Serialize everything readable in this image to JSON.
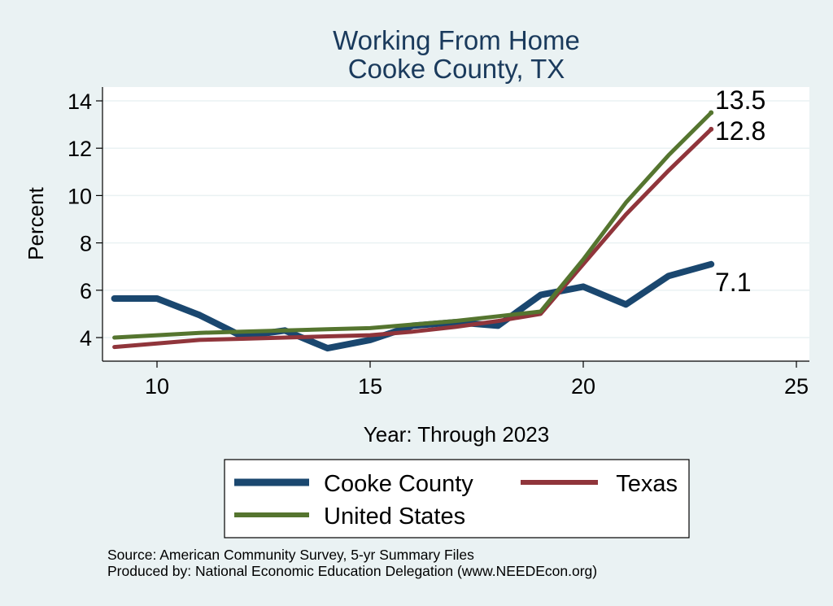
{
  "chart_data": {
    "type": "line",
    "title": [
      "Working From Home",
      "Cooke County, TX"
    ],
    "xlabel": "Year: Through 2023",
    "ylabel": "Percent",
    "xlim": [
      9,
      25
    ],
    "ylim": [
      3,
      14.5
    ],
    "xticks": [
      10,
      15,
      20,
      25
    ],
    "yticks": [
      4,
      6,
      8,
      10,
      12,
      14
    ],
    "grid": true,
    "legend_position": "bottom",
    "x": [
      9,
      10,
      11,
      12,
      13,
      14,
      15,
      16,
      17,
      18,
      19,
      20,
      21,
      22,
      23
    ],
    "series": [
      {
        "name": "Cooke County",
        "color": "#1a476f",
        "values": [
          5.65,
          5.65,
          4.95,
          4.05,
          4.3,
          3.55,
          3.9,
          4.5,
          4.65,
          4.5,
          5.8,
          6.15,
          5.4,
          6.6,
          7.1
        ],
        "end_label": "7.1"
      },
      {
        "name": "Texas",
        "color": "#90353b",
        "values": [
          3.6,
          3.75,
          3.9,
          3.95,
          4.0,
          4.05,
          4.1,
          4.25,
          4.45,
          4.7,
          5.0,
          7.1,
          9.2,
          11.05,
          12.8
        ],
        "end_label": "12.8"
      },
      {
        "name": "United States",
        "color": "#55752f",
        "values": [
          4.0,
          4.1,
          4.2,
          4.25,
          4.3,
          4.35,
          4.4,
          4.55,
          4.7,
          4.9,
          5.1,
          7.3,
          9.7,
          11.7,
          13.5
        ],
        "end_label": "13.5"
      }
    ],
    "notes": [
      "Source: American Community Survey, 5-yr Summary Files",
      "Produced by: National Economic Education Delegation (www.NEEDEcon.org)"
    ]
  }
}
